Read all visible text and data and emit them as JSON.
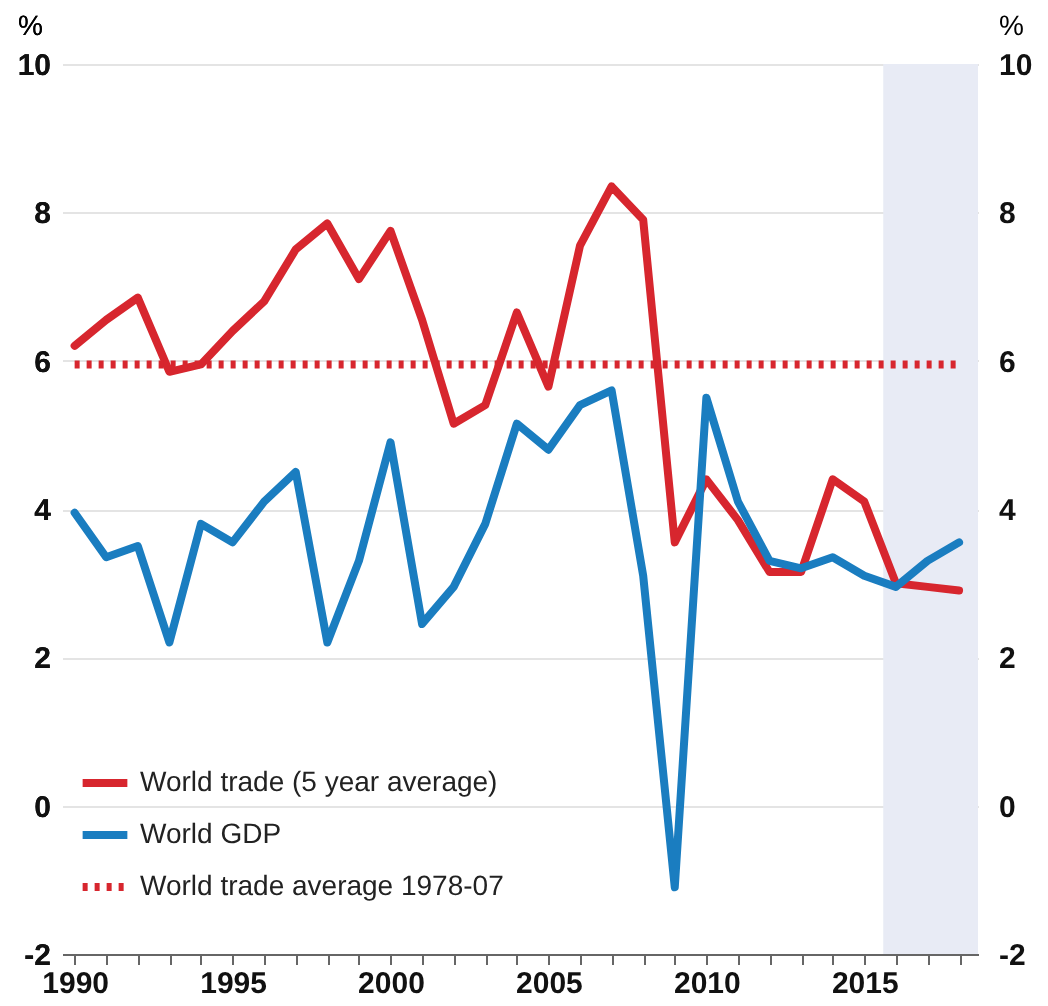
{
  "chart_data": {
    "type": "line",
    "ylabel": "%",
    "y2label": "%",
    "x": [
      1990,
      1991,
      1992,
      1993,
      1994,
      1995,
      1996,
      1997,
      1998,
      1999,
      2000,
      2001,
      2002,
      2003,
      2004,
      2005,
      2006,
      2007,
      2008,
      2009,
      2010,
      2011,
      2012,
      2013,
      2014,
      2015,
      2016,
      2017,
      2018
    ],
    "series": [
      {
        "name": "World trade (5 year average)",
        "color": "#d7262e",
        "line_style": "solid",
        "values": [
          6.2,
          6.55,
          6.85,
          5.85,
          5.95,
          6.4,
          6.8,
          7.5,
          7.85,
          7.1,
          7.75,
          6.55,
          5.15,
          5.4,
          6.65,
          5.65,
          7.55,
          8.35,
          7.9,
          3.55,
          4.4,
          3.85,
          3.15,
          3.15,
          4.4,
          4.1,
          3.0,
          2.95,
          2.9
        ]
      },
      {
        "name": "World GDP",
        "color": "#1a7dc0",
        "line_style": "solid",
        "values": [
          3.95,
          3.35,
          3.5,
          2.2,
          3.8,
          3.55,
          4.1,
          4.5,
          2.2,
          3.3,
          4.9,
          2.45,
          2.95,
          3.8,
          5.15,
          4.8,
          5.4,
          5.6,
          3.1,
          -1.1,
          5.5,
          4.1,
          3.3,
          3.2,
          3.35,
          3.1,
          2.95,
          3.3,
          3.55
        ]
      },
      {
        "name": "World trade average 1978-07",
        "color": "#d7262e",
        "line_style": "dotted",
        "axis": "y2",
        "values": [
          5.95,
          5.95,
          5.95,
          5.95,
          5.95,
          5.95,
          5.95,
          5.95,
          5.95,
          5.95,
          5.95,
          5.95,
          5.95,
          5.95,
          5.95,
          5.95,
          5.95,
          5.95,
          5.95,
          5.95,
          5.95,
          5.95,
          5.95,
          5.95,
          5.95,
          5.95,
          5.95,
          5.95,
          5.95
        ]
      }
    ],
    "xlim": [
      1989.6,
      2018.6
    ],
    "xticks": [
      1990,
      {
        "value": 1991,
        "label": null
      },
      {
        "value": 1992,
        "label": null
      },
      {
        "value": 1993,
        "label": null
      },
      {
        "value": 1994,
        "label": null
      },
      1995,
      {
        "value": 1996,
        "label": null
      },
      {
        "value": 1997,
        "label": null
      },
      {
        "value": 1998,
        "label": null
      },
      {
        "value": 1999,
        "label": null
      },
      2000,
      {
        "value": 2001,
        "label": null
      },
      {
        "value": 2002,
        "label": null
      },
      {
        "value": 2003,
        "label": null
      },
      {
        "value": 2004,
        "label": null
      },
      2005,
      {
        "value": 2006,
        "label": null
      },
      {
        "value": 2007,
        "label": null
      },
      {
        "value": 2008,
        "label": null
      },
      {
        "value": 2009,
        "label": null
      },
      2010,
      {
        "value": 2011,
        "label": null
      },
      {
        "value": 2012,
        "label": null
      },
      {
        "value": 2013,
        "label": null
      },
      {
        "value": 2014,
        "label": null
      },
      2015,
      {
        "value": 2016,
        "label": null
      },
      {
        "value": 2017,
        "label": null
      },
      {
        "value": 2018,
        "label": null
      }
    ],
    "ylim": [
      -2,
      10
    ],
    "yticks": [
      -2,
      0,
      2,
      4,
      6,
      8,
      10
    ],
    "y2lim": [
      -2,
      10
    ],
    "y2ticks": [
      -2,
      0,
      2,
      4,
      6,
      8,
      10
    ],
    "bands": [
      {
        "axis": "x",
        "from": 2015.6,
        "to": 2018.6,
        "color": "#e8ebf5"
      }
    ],
    "grid": "y",
    "legend": "bottom left",
    "marker": "none"
  }
}
